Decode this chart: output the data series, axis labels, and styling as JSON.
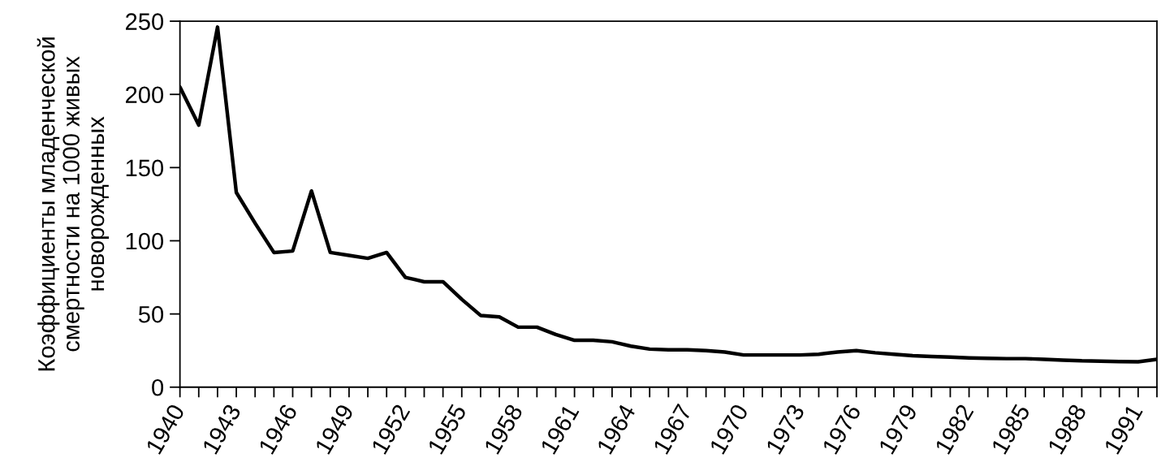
{
  "chart_data": {
    "type": "line",
    "ylabel": "Коэффициенты младенческой\nсмертности на 1000 живых\nноворожденных",
    "x": [
      1940,
      1941,
      1942,
      1943,
      1944,
      1945,
      1946,
      1947,
      1948,
      1949,
      1950,
      1951,
      1952,
      1953,
      1954,
      1955,
      1956,
      1957,
      1958,
      1959,
      1960,
      1961,
      1962,
      1963,
      1964,
      1965,
      1966,
      1967,
      1968,
      1969,
      1970,
      1971,
      1972,
      1973,
      1974,
      1975,
      1976,
      1977,
      1978,
      1979,
      1980,
      1981,
      1982,
      1983,
      1984,
      1985,
      1986,
      1987,
      1988,
      1989,
      1990,
      1991,
      1992
    ],
    "series": [
      {
        "color": "#000000",
        "values": [
          205,
          179,
          246,
          133,
          112,
          92,
          93,
          134,
          92,
          90,
          88,
          92,
          75,
          72,
          72,
          60,
          49,
          48,
          41,
          41,
          36,
          32,
          32,
          31,
          28,
          26,
          25.5,
          25.5,
          25,
          24,
          22,
          22,
          22,
          22,
          22.5,
          24,
          25,
          23.5,
          22.5,
          21.5,
          21,
          20.5,
          20,
          19.7,
          19.5,
          19.5,
          19,
          18.5,
          18,
          17.8,
          17.5,
          17.3,
          19
        ]
      }
    ],
    "xlim": [
      1940,
      1992
    ],
    "xticks": [
      1940,
      {
        "value": 1941,
        "label": null
      },
      {
        "value": 1942,
        "label": null
      },
      1943,
      {
        "value": 1944,
        "label": null
      },
      {
        "value": 1945,
        "label": null
      },
      1946,
      {
        "value": 1947,
        "label": null
      },
      {
        "value": 1948,
        "label": null
      },
      1949,
      {
        "value": 1950,
        "label": null
      },
      {
        "value": 1951,
        "label": null
      },
      1952,
      {
        "value": 1953,
        "label": null
      },
      {
        "value": 1954,
        "label": null
      },
      1955,
      {
        "value": 1956,
        "label": null
      },
      {
        "value": 1957,
        "label": null
      },
      1958,
      {
        "value": 1959,
        "label": null
      },
      {
        "value": 1960,
        "label": null
      },
      1961,
      {
        "value": 1962,
        "label": null
      },
      {
        "value": 1963,
        "label": null
      },
      1964,
      {
        "value": 1965,
        "label": null
      },
      {
        "value": 1966,
        "label": null
      },
      1967,
      {
        "value": 1968,
        "label": null
      },
      {
        "value": 1969,
        "label": null
      },
      1970,
      {
        "value": 1971,
        "label": null
      },
      {
        "value": 1972,
        "label": null
      },
      1973,
      {
        "value": 1974,
        "label": null
      },
      {
        "value": 1975,
        "label": null
      },
      1976,
      {
        "value": 1977,
        "label": null
      },
      {
        "value": 1978,
        "label": null
      },
      1979,
      {
        "value": 1980,
        "label": null
      },
      {
        "value": 1981,
        "label": null
      },
      1982,
      {
        "value": 1983,
        "label": null
      },
      {
        "value": 1984,
        "label": null
      },
      1985,
      {
        "value": 1986,
        "label": null
      },
      {
        "value": 1987,
        "label": null
      },
      1988,
      {
        "value": 1989,
        "label": null
      },
      {
        "value": 1990,
        "label": null
      },
      1991,
      {
        "value": 1992,
        "label": null
      }
    ],
    "ylim": [
      0,
      250
    ],
    "yticks": [
      0,
      50,
      100,
      150,
      200,
      250
    ]
  }
}
